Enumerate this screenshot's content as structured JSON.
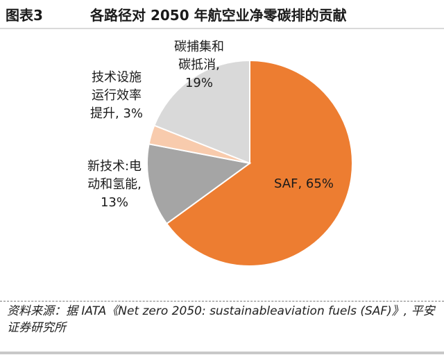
{
  "figure": {
    "number": "图表3",
    "title": "各路径对 2050 年航空业净零碳排的贡献",
    "source": "资料来源：据 IATA《Net zero 2050: sustainableaviation fuels (SAF)》, 平安证券研究所"
  },
  "chart_data": {
    "type": "pie",
    "title": "",
    "start_angle_deg": 0,
    "direction": "clockwise",
    "slices": [
      {
        "label_lines": [
          "SAF, 65%"
        ],
        "value": 65,
        "color": "#ED7D31"
      },
      {
        "label_lines": [
          "新技术:电",
          "动和氢能,",
          "13%"
        ],
        "value": 13,
        "color": "#A5A5A5"
      },
      {
        "label_lines": [
          "技术设施",
          "运行效率",
          "提升, 3%"
        ],
        "value": 3,
        "color": "#F8CBAD"
      },
      {
        "label_lines": [
          "碳捕集和",
          "碳抵消,",
          "19%"
        ],
        "value": 19,
        "color": "#D9D9D9"
      }
    ]
  }
}
